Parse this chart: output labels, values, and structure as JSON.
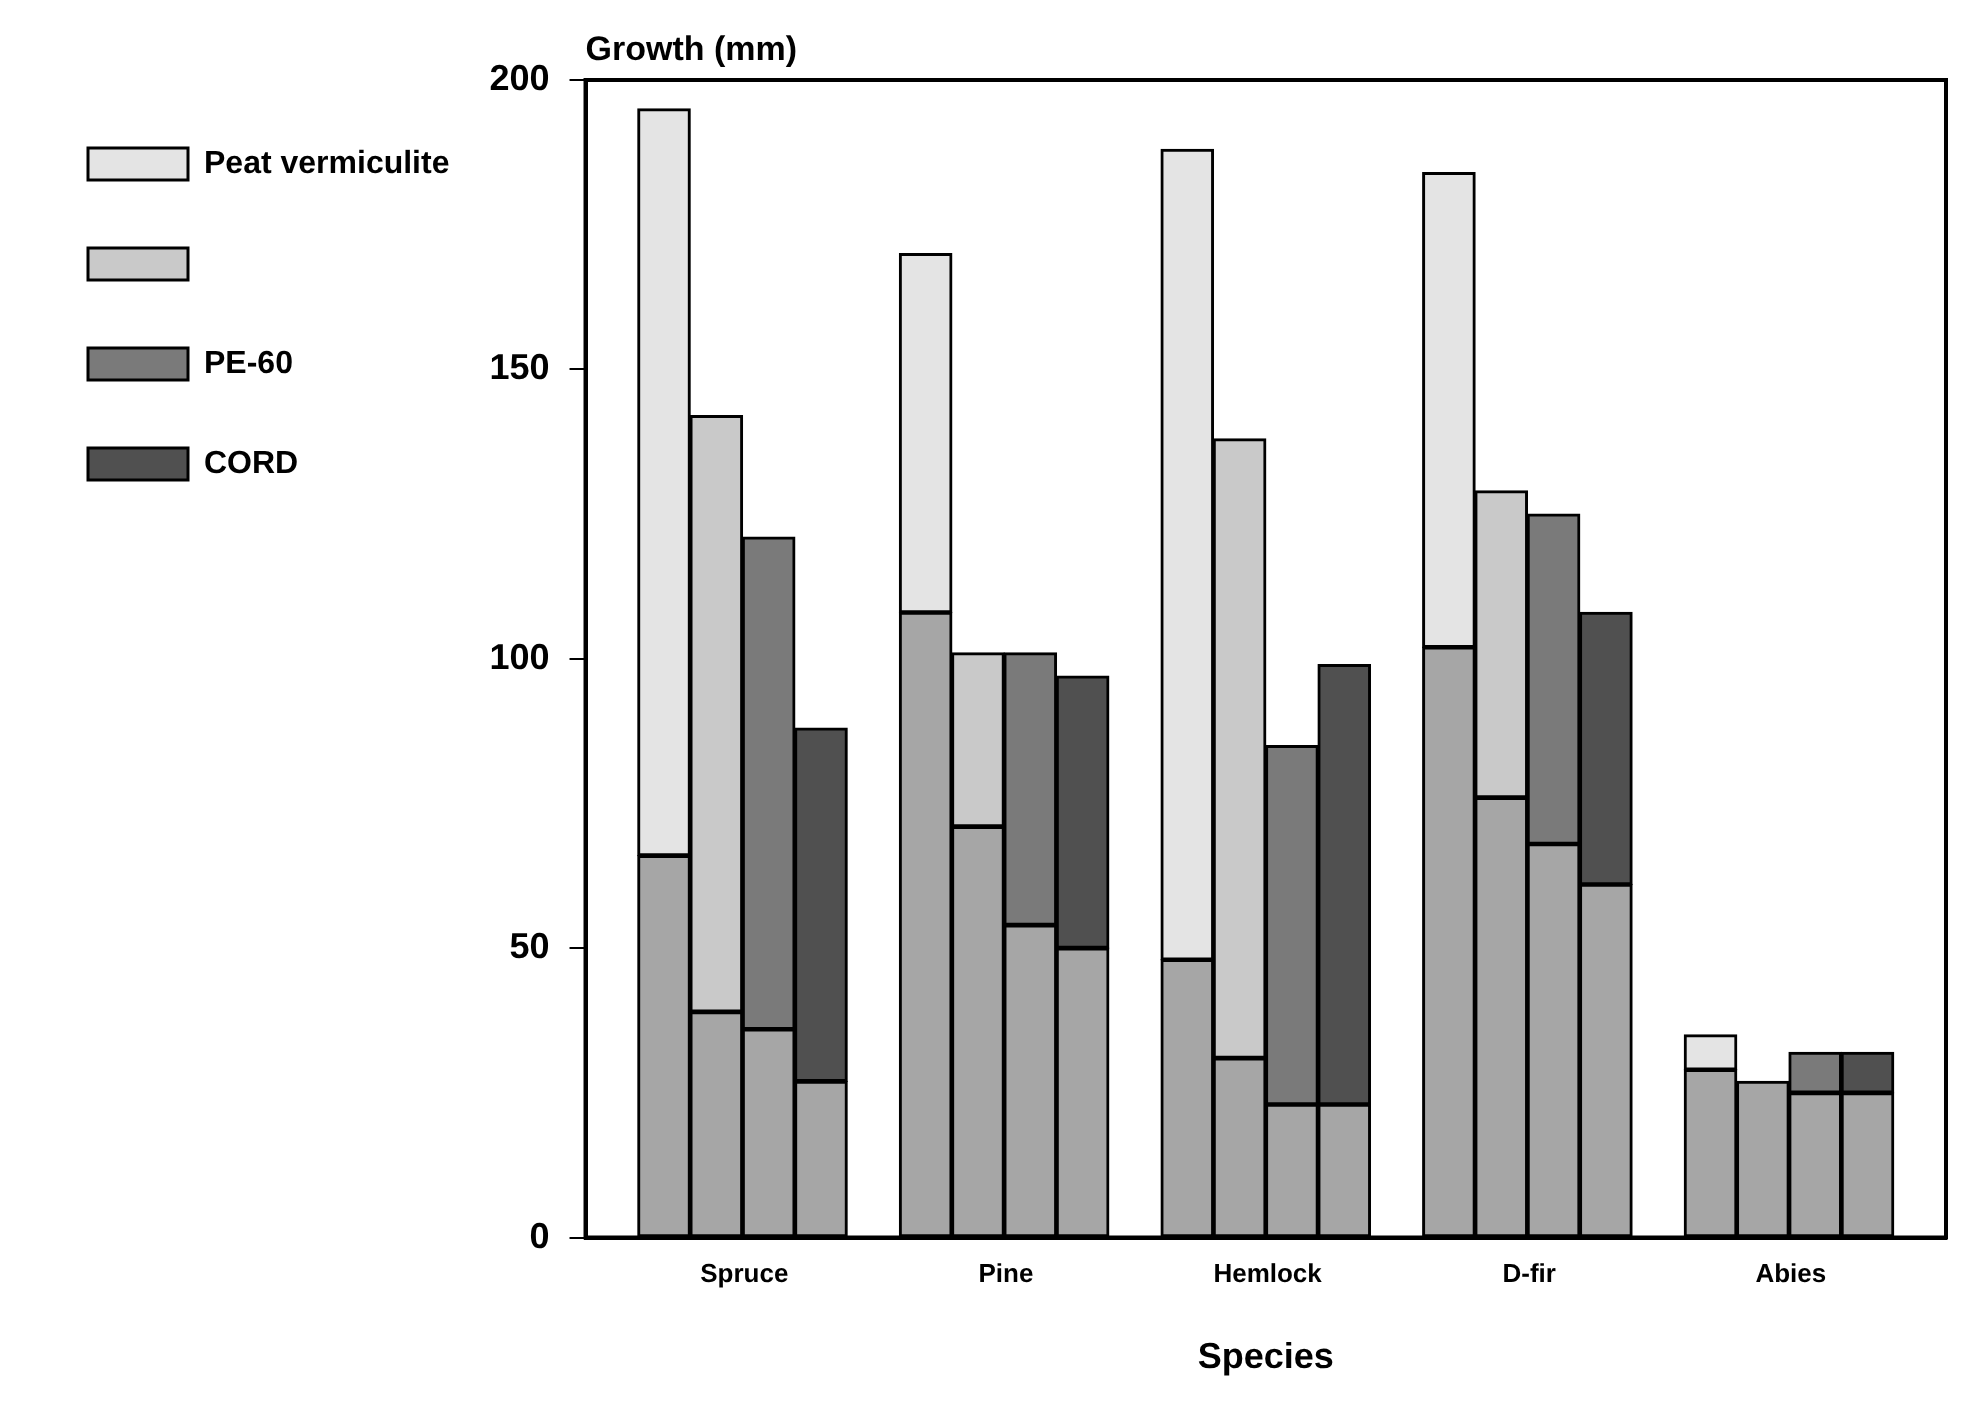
{
  "chart_data": {
    "type": "bar",
    "xlabel": "Species",
    "ylabel": "Growth (mm)",
    "categories": [
      null,
      null,
      "Spruce",
      null,
      null,
      null,
      null,
      "Pine",
      null,
      null,
      null,
      null,
      "Hemlock",
      null,
      null,
      null,
      null,
      "D-fir",
      null,
      null,
      null,
      null,
      "Abies",
      null,
      null,
      null
    ],
    "stacked": true,
    "grid": false,
    "legend": "left",
    "ylim": [
      0,
      200
    ],
    "yticks": [
      0,
      50,
      100,
      150,
      200
    ],
    "series": [
      {
        "color": "#a6a6a6",
        "values": [
          null,
          66,
          39,
          36,
          27,
          null,
          108,
          71,
          54,
          50,
          null,
          48,
          31,
          23,
          23,
          null,
          102,
          76,
          68,
          61,
          null,
          29,
          27,
          25,
          25,
          null
        ]
      },
      {
        "name": "Peat vermiculite",
        "color": "#e4e4e4",
        "values": [
          null,
          129,
          null,
          null,
          null,
          null,
          62,
          null,
          null,
          null,
          null,
          140,
          null,
          null,
          null,
          null,
          82,
          null,
          null,
          null,
          null,
          6,
          null,
          null,
          null,
          null
        ]
      },
      {
        "color": "#c9c9c9",
        "values": [
          null,
          null,
          103,
          null,
          null,
          null,
          null,
          30,
          null,
          null,
          null,
          null,
          107,
          null,
          null,
          null,
          null,
          53,
          null,
          null,
          null,
          null,
          0,
          null,
          null,
          null
        ]
      },
      {
        "name": "PE-60",
        "color": "#7a7a7a",
        "values": [
          null,
          null,
          null,
          85,
          null,
          null,
          null,
          null,
          47,
          null,
          null,
          null,
          null,
          62,
          null,
          null,
          null,
          null,
          57,
          null,
          null,
          null,
          null,
          7,
          null,
          null
        ]
      },
      {
        "name": "CORD",
        "color": "#505050",
        "values": [
          null,
          null,
          null,
          null,
          61,
          null,
          null,
          null,
          null,
          47,
          null,
          null,
          null,
          null,
          76,
          null,
          null,
          null,
          null,
          47,
          null,
          null,
          null,
          null,
          7,
          null
        ]
      }
    ]
  }
}
